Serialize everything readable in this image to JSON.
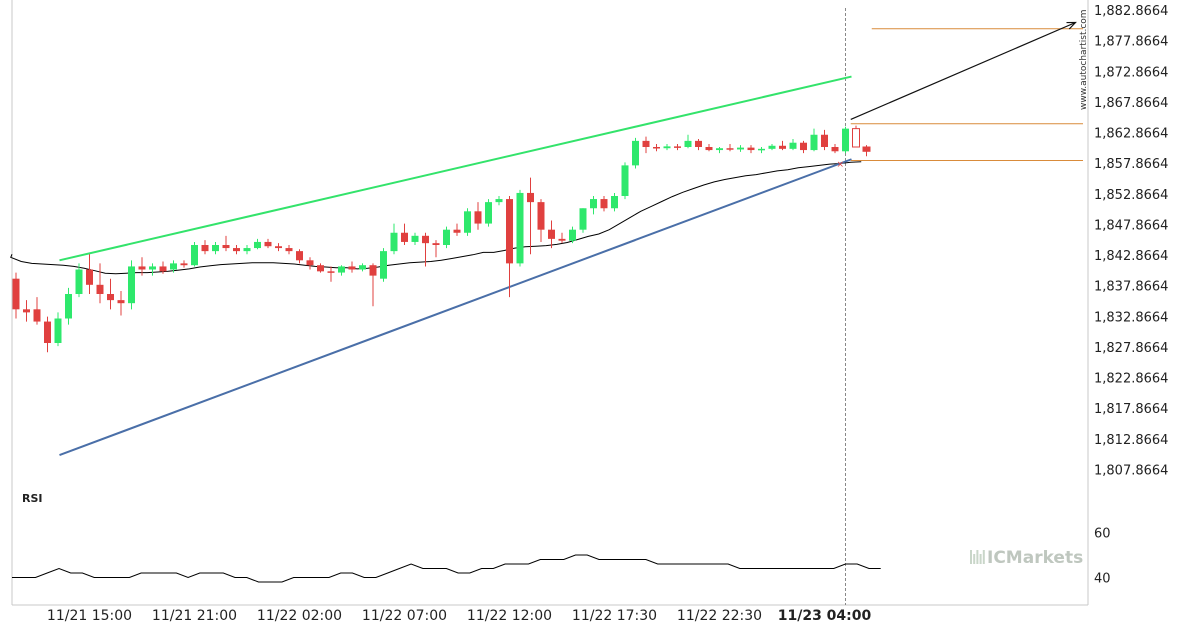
{
  "chart_data": [
    {
      "type": "candlestick",
      "title": "",
      "ylim": [
        1804.5,
        1884.5
      ],
      "y_ticks": [
        "1,882.8664",
        "1,877.8664",
        "1,872.8664",
        "1,867.8664",
        "1,862.8664",
        "1,857.8664",
        "1,852.8664",
        "1,847.8664",
        "1,842.8664",
        "1,837.8664",
        "1,832.8664",
        "1,827.8664",
        "1,822.8664",
        "1,817.8664",
        "1,812.8664",
        "1,807.8664"
      ],
      "y_tick_values": [
        1882.8664,
        1877.8664,
        1872.8664,
        1867.8664,
        1862.8664,
        1857.8664,
        1852.8664,
        1847.8664,
        1842.8664,
        1837.8664,
        1832.8664,
        1827.8664,
        1822.8664,
        1817.8664,
        1812.8664,
        1807.8664
      ],
      "x_tick_labels": [
        "11/21 15:00",
        "11/21 21:00",
        "11/22 02:00",
        "11/22 07:00",
        "11/22 12:00",
        "11/22 17:30",
        "11/22 22:30",
        "11/23 04:00"
      ],
      "x_tick_bar_index": [
        7,
        17,
        27,
        37,
        47,
        57,
        67,
        77
      ],
      "candles": [
        {
          "o": 1839.0,
          "h": 1840.0,
          "c": 1834.0,
          "l": 1832.5
        },
        {
          "o": 1834.0,
          "h": 1835.5,
          "c": 1833.5,
          "l": 1832.0
        },
        {
          "o": 1834.0,
          "h": 1836.0,
          "c": 1832.0,
          "l": 1831.5
        },
        {
          "o": 1832.0,
          "h": 1832.8,
          "c": 1828.5,
          "l": 1827.0
        },
        {
          "o": 1828.5,
          "h": 1833.5,
          "c": 1832.5,
          "l": 1828.0
        },
        {
          "o": 1832.5,
          "h": 1837.5,
          "c": 1836.5,
          "l": 1831.5
        },
        {
          "o": 1836.5,
          "h": 1841.5,
          "c": 1840.5,
          "l": 1836.0
        },
        {
          "o": 1840.5,
          "h": 1843.0,
          "c": 1838.0,
          "l": 1836.5
        },
        {
          "o": 1838.0,
          "h": 1841.5,
          "c": 1836.5,
          "l": 1835.0
        },
        {
          "o": 1836.5,
          "h": 1839.0,
          "c": 1835.5,
          "l": 1834.0
        },
        {
          "o": 1835.5,
          "h": 1837.0,
          "c": 1835.0,
          "l": 1833.0
        },
        {
          "o": 1835.0,
          "h": 1842.0,
          "c": 1841.0,
          "l": 1834.0
        },
        {
          "o": 1841.0,
          "h": 1842.5,
          "c": 1840.5,
          "l": 1839.5
        },
        {
          "o": 1840.5,
          "h": 1841.5,
          "c": 1841.0,
          "l": 1839.5
        },
        {
          "o": 1841.0,
          "h": 1841.8,
          "c": 1840.2,
          "l": 1839.8
        },
        {
          "o": 1840.5,
          "h": 1842.0,
          "c": 1841.5,
          "l": 1840.0
        },
        {
          "o": 1841.5,
          "h": 1842.0,
          "c": 1841.2,
          "l": 1840.8
        },
        {
          "o": 1841.2,
          "h": 1845.0,
          "c": 1844.5,
          "l": 1841.0
        },
        {
          "o": 1844.5,
          "h": 1845.3,
          "c": 1843.5,
          "l": 1843.0
        },
        {
          "o": 1843.5,
          "h": 1845.0,
          "c": 1844.5,
          "l": 1843.0
        },
        {
          "o": 1844.5,
          "h": 1846.0,
          "c": 1844.0,
          "l": 1843.5
        },
        {
          "o": 1844.0,
          "h": 1844.5,
          "c": 1843.5,
          "l": 1843.0
        },
        {
          "o": 1843.5,
          "h": 1844.5,
          "c": 1844.0,
          "l": 1843.0
        },
        {
          "o": 1844.0,
          "h": 1845.5,
          "c": 1845.0,
          "l": 1843.8
        },
        {
          "o": 1845.0,
          "h": 1845.5,
          "c": 1844.3,
          "l": 1844.0
        },
        {
          "o": 1844.3,
          "h": 1844.8,
          "c": 1844.0,
          "l": 1843.5
        },
        {
          "o": 1844.0,
          "h": 1844.5,
          "c": 1843.5,
          "l": 1843.0
        },
        {
          "o": 1843.5,
          "h": 1843.8,
          "c": 1842.0,
          "l": 1841.5
        },
        {
          "o": 1842.0,
          "h": 1842.5,
          "c": 1841.2,
          "l": 1840.5
        },
        {
          "o": 1841.2,
          "h": 1841.5,
          "c": 1840.2,
          "l": 1840.0
        },
        {
          "o": 1840.2,
          "h": 1841.0,
          "c": 1840.0,
          "l": 1838.5
        },
        {
          "o": 1840.0,
          "h": 1841.2,
          "c": 1841.0,
          "l": 1839.5
        },
        {
          "o": 1841.0,
          "h": 1841.8,
          "c": 1840.5,
          "l": 1840.0
        },
        {
          "o": 1840.5,
          "h": 1841.5,
          "c": 1841.2,
          "l": 1840.2
        },
        {
          "o": 1841.2,
          "h": 1841.5,
          "c": 1839.5,
          "l": 1834.5
        },
        {
          "o": 1839.0,
          "h": 1844.0,
          "c": 1843.5,
          "l": 1838.5
        },
        {
          "o": 1843.5,
          "h": 1848.0,
          "c": 1846.5,
          "l": 1843.0
        },
        {
          "o": 1846.5,
          "h": 1848.0,
          "c": 1845.0,
          "l": 1844.5
        },
        {
          "o": 1845.0,
          "h": 1846.5,
          "c": 1846.0,
          "l": 1844.5
        },
        {
          "o": 1846.0,
          "h": 1846.5,
          "c": 1844.8,
          "l": 1841.0
        },
        {
          "o": 1844.8,
          "h": 1845.3,
          "c": 1844.5,
          "l": 1842.5
        },
        {
          "o": 1844.5,
          "h": 1847.5,
          "c": 1847.0,
          "l": 1844.0
        },
        {
          "o": 1847.0,
          "h": 1848.0,
          "c": 1846.5,
          "l": 1846.0
        },
        {
          "o": 1846.5,
          "h": 1850.5,
          "c": 1850.0,
          "l": 1846.0
        },
        {
          "o": 1850.0,
          "h": 1851.5,
          "c": 1848.0,
          "l": 1847.0
        },
        {
          "o": 1848.0,
          "h": 1852.0,
          "c": 1851.5,
          "l": 1847.5
        },
        {
          "o": 1851.5,
          "h": 1852.5,
          "c": 1852.0,
          "l": 1851.0
        },
        {
          "o": 1852.0,
          "h": 1852.5,
          "c": 1841.5,
          "l": 1836.0
        },
        {
          "o": 1841.5,
          "h": 1853.5,
          "c": 1853.0,
          "l": 1841.0
        },
        {
          "o": 1853.0,
          "h": 1855.5,
          "c": 1851.5,
          "l": 1843.0
        },
        {
          "o": 1851.5,
          "h": 1852.0,
          "c": 1847.0,
          "l": 1845.0
        },
        {
          "o": 1847.0,
          "h": 1848.5,
          "c": 1845.5,
          "l": 1844.0
        },
        {
          "o": 1845.5,
          "h": 1846.5,
          "c": 1845.2,
          "l": 1844.8
        },
        {
          "o": 1845.2,
          "h": 1847.5,
          "c": 1847.0,
          "l": 1844.8
        },
        {
          "o": 1847.0,
          "h": 1850.5,
          "c": 1850.5,
          "l": 1846.5
        },
        {
          "o": 1850.5,
          "h": 1852.5,
          "c": 1852.0,
          "l": 1849.5
        },
        {
          "o": 1852.0,
          "h": 1852.5,
          "c": 1850.5,
          "l": 1850.0
        },
        {
          "o": 1850.5,
          "h": 1853.0,
          "c": 1852.5,
          "l": 1850.0
        },
        {
          "o": 1852.5,
          "h": 1858.0,
          "c": 1857.5,
          "l": 1852.0
        },
        {
          "o": 1857.5,
          "h": 1862.0,
          "c": 1861.5,
          "l": 1857.0
        },
        {
          "o": 1861.5,
          "h": 1862.2,
          "c": 1860.5,
          "l": 1859.5
        },
        {
          "o": 1860.5,
          "h": 1861.0,
          "c": 1860.3,
          "l": 1859.8
        },
        {
          "o": 1860.3,
          "h": 1861.0,
          "c": 1860.6,
          "l": 1860.0
        },
        {
          "o": 1860.6,
          "h": 1861.0,
          "c": 1860.5,
          "l": 1860.0
        },
        {
          "o": 1860.5,
          "h": 1862.5,
          "c": 1861.5,
          "l": 1860.3
        },
        {
          "o": 1861.5,
          "h": 1861.8,
          "c": 1860.5,
          "l": 1860.0
        },
        {
          "o": 1860.5,
          "h": 1861.0,
          "c": 1860.0,
          "l": 1859.8
        },
        {
          "o": 1860.0,
          "h": 1860.5,
          "c": 1860.3,
          "l": 1859.5
        },
        {
          "o": 1860.3,
          "h": 1861.0,
          "c": 1860.1,
          "l": 1859.8
        },
        {
          "o": 1860.1,
          "h": 1860.8,
          "c": 1860.4,
          "l": 1859.7
        },
        {
          "o": 1860.4,
          "h": 1860.8,
          "c": 1860.0,
          "l": 1859.5
        },
        {
          "o": 1860.0,
          "h": 1860.5,
          "c": 1860.2,
          "l": 1859.5
        },
        {
          "o": 1860.2,
          "h": 1861.0,
          "c": 1860.7,
          "l": 1860.0
        },
        {
          "o": 1860.7,
          "h": 1861.5,
          "c": 1860.2,
          "l": 1860.0
        },
        {
          "o": 1860.2,
          "h": 1861.8,
          "c": 1861.2,
          "l": 1860.0
        },
        {
          "o": 1861.2,
          "h": 1861.5,
          "c": 1860.0,
          "l": 1859.5
        },
        {
          "o": 1860.0,
          "h": 1863.5,
          "c": 1862.5,
          "l": 1859.8
        },
        {
          "o": 1862.5,
          "h": 1863.3,
          "c": 1860.5,
          "l": 1860.0
        },
        {
          "o": 1860.5,
          "h": 1861.0,
          "c": 1859.8,
          "l": 1859.5
        },
        {
          "o": 1859.8,
          "h": 1863.8,
          "c": 1863.5,
          "l": 1859.5
        }
      ],
      "pending_candles": [
        {
          "o": 1863.5,
          "h": 1864.0,
          "c": 1860.5,
          "l": 1860.5
        },
        {
          "o": 1860.5,
          "h": 1860.8,
          "c": 1859.8,
          "l": 1859.0
        }
      ],
      "moving_average": [
        1843.0,
        1842.5,
        1841.8,
        1841.5,
        1841.4,
        1841.3,
        1841.2,
        1841.0,
        1840.7,
        1840.3,
        1839.9,
        1839.8,
        1839.9,
        1840.0,
        1840.0,
        1840.1,
        1840.2,
        1840.4,
        1840.6,
        1840.9,
        1841.1,
        1841.3,
        1841.4,
        1841.5,
        1841.6,
        1841.6,
        1841.6,
        1841.5,
        1841.4,
        1841.2,
        1841.0,
        1840.9,
        1840.8,
        1840.8,
        1840.6,
        1840.7,
        1840.9,
        1841.2,
        1841.4,
        1841.6,
        1841.7,
        1841.8,
        1842.0,
        1842.3,
        1842.6,
        1842.9,
        1843.3,
        1843.3,
        1843.6,
        1844.0,
        1844.2,
        1844.3,
        1844.4,
        1844.6,
        1844.9,
        1845.4,
        1845.9,
        1846.3,
        1847.0,
        1848.0,
        1849.0,
        1850.0,
        1850.8,
        1851.6,
        1852.4,
        1853.1,
        1853.7,
        1854.3,
        1854.8,
        1855.2,
        1855.5,
        1855.8,
        1856.0,
        1856.3,
        1856.6,
        1856.8,
        1857.1,
        1857.3,
        1857.5,
        1857.7,
        1857.8,
        1858.0,
        1858.1
      ],
      "trend_lines": [
        {
          "name": "resistance",
          "color": "#33e36b",
          "x0_index": 3,
          "y0": 1842.0,
          "x1_index": 79,
          "y1": 1872.0
        },
        {
          "name": "support",
          "color": "#4a6fa8",
          "x0_index": 3,
          "y0": 1810.2,
          "x1_index": 79,
          "y1": 1858.5
        }
      ],
      "forecast_arrow": {
        "x0_index": 79.5,
        "y0": 1865.0,
        "x1_index": 99,
        "y1": 1880.5
      },
      "levels": [
        {
          "y": 1879.8,
          "x_from_index": 81.5
        },
        {
          "y": 1864.3,
          "x_from_index": 79.5
        },
        {
          "y": 1858.3,
          "x_from_index": 79.5
        }
      ],
      "current_bar_index": 79,
      "colors": {
        "up": "#2ee86c",
        "down": "#e0403f",
        "ma": "#000000",
        "level": "#d98b3a",
        "arrow": "#111111",
        "axis": "#c8c8c8",
        "cursor": "#888888",
        "pending": "#e0403f"
      }
    },
    {
      "type": "line",
      "label": "RSI",
      "y_ticks": [
        "60",
        "40"
      ],
      "y_tick_values": [
        60,
        40
      ],
      "ylim": [
        30,
        70
      ],
      "values": [
        40,
        40,
        40,
        42,
        44,
        42,
        42,
        40,
        40,
        40,
        40,
        42,
        42,
        42,
        42,
        40,
        42,
        42,
        42,
        40,
        40,
        38,
        38,
        38,
        40,
        40,
        40,
        40,
        42,
        42,
        40,
        40,
        42,
        44,
        46,
        44,
        44,
        44,
        42,
        42,
        44,
        44,
        46,
        46,
        46,
        48,
        48,
        48,
        50,
        50,
        48,
        48,
        48,
        48,
        48,
        46,
        46,
        46,
        46,
        46,
        46,
        46,
        44,
        44,
        44,
        44,
        44,
        44,
        44,
        44,
        44,
        46,
        46,
        44,
        44
      ],
      "color": "#000000"
    }
  ],
  "watermark": {
    "brand": "ICMarkets",
    "side_text": "www.autochartist.com"
  }
}
